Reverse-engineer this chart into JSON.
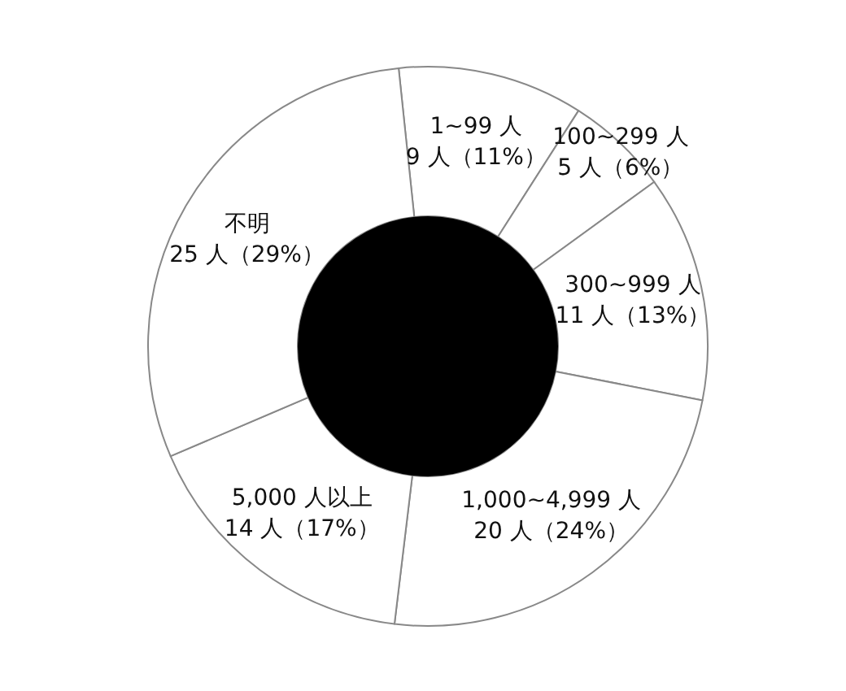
{
  "chart_data": {
    "type": "donut",
    "categories": [
      "1~99 人",
      "100~299 人",
      "300~999 人",
      "1,000~4,999 人",
      "5,000 人以上",
      "不明"
    ],
    "values": [
      9,
      5,
      11,
      20,
      14,
      25
    ],
    "value_labels": [
      "9 人（11%）",
      "5 人（6%）",
      "11 人（13%）",
      "20 人（24%）",
      "14 人（17%）",
      "25 人（29%）"
    ],
    "colors": [
      "#ffffff",
      "#ffffff",
      "#ffffff",
      "#ffffff",
      "#ffffff",
      "#ffffff"
    ],
    "legend": false
  }
}
